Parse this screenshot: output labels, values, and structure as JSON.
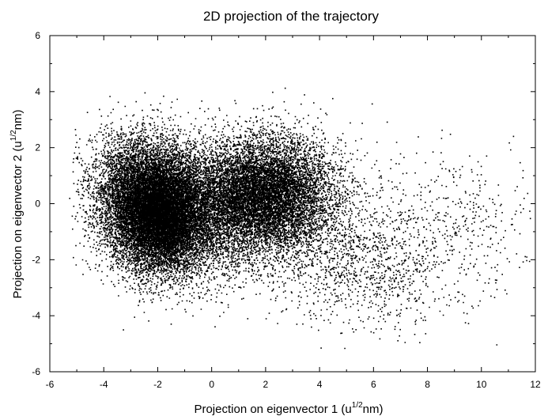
{
  "chart_data": {
    "type": "scatter",
    "title": "2D projection of the trajectory",
    "xlabel": {
      "before": "Projection on eigenvector 1 (u",
      "sup": "1/2",
      "after": "nm)"
    },
    "ylabel": {
      "before": "Projection on eigenvector 2 (u",
      "sup": "1/2",
      "after": "nm)"
    },
    "xlim": [
      -6,
      12
    ],
    "ylim": [
      -6,
      6
    ],
    "xticks": [
      -6,
      -4,
      -2,
      0,
      2,
      4,
      6,
      8,
      10,
      12
    ],
    "yticks": [
      -6,
      -4,
      -2,
      0,
      2,
      4,
      6
    ],
    "grid": false,
    "legend": "none",
    "marker_color": "#000000",
    "clusters": [
      {
        "center": [
          -1.9,
          -0.5
        ],
        "spread": [
          0.9,
          0.95
        ],
        "count": 11000
      },
      {
        "center": [
          -2.5,
          0.6
        ],
        "spread": [
          1.0,
          1.0
        ],
        "count": 5000
      },
      {
        "center": [
          2.0,
          0.4
        ],
        "spread": [
          1.25,
          1.0
        ],
        "count": 8500
      },
      {
        "center": [
          0.3,
          -0.4
        ],
        "spread": [
          1.5,
          1.2
        ],
        "count": 3500
      },
      {
        "center": [
          4.5,
          -1.6
        ],
        "spread": [
          1.3,
          1.3
        ],
        "count": 900
      },
      {
        "center": [
          6.8,
          -2.3
        ],
        "spread": [
          1.0,
          1.1
        ],
        "count": 450
      },
      {
        "center": [
          9.2,
          -0.8
        ],
        "spread": [
          1.3,
          1.4
        ],
        "count": 380
      }
    ]
  }
}
